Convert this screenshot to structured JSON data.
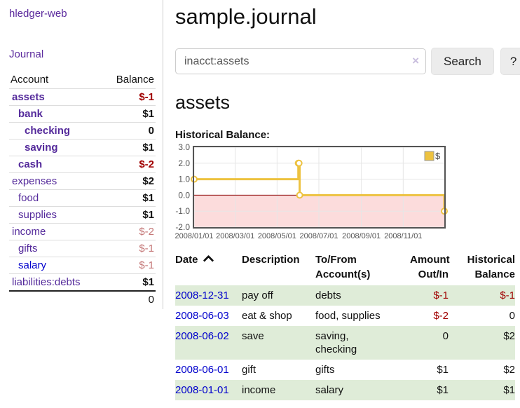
{
  "app": {
    "title": "hledger-web"
  },
  "sidebar": {
    "journal_link": "Journal",
    "accounts_table": {
      "headers": [
        "Account",
        "Balance"
      ],
      "rows": [
        {
          "name": "assets",
          "indent": 0,
          "bold": true,
          "balance": "$-1",
          "balance_class": "neg-strong"
        },
        {
          "name": "bank",
          "indent": 1,
          "bold": true,
          "balance": "$1",
          "balance_class": ""
        },
        {
          "name": "checking",
          "indent": 2,
          "bold": true,
          "balance": "0",
          "balance_class": ""
        },
        {
          "name": "saving",
          "indent": 2,
          "bold": true,
          "balance": "$1",
          "balance_class": ""
        },
        {
          "name": "cash",
          "indent": 1,
          "bold": true,
          "balance": "$-2",
          "balance_class": "neg-strong"
        },
        {
          "name": "expenses",
          "indent": 0,
          "bold": false,
          "balance": "$2",
          "balance_class": ""
        },
        {
          "name": "food",
          "indent": 1,
          "bold": false,
          "balance": "$1",
          "balance_class": ""
        },
        {
          "name": "supplies",
          "indent": 1,
          "bold": false,
          "balance": "$1",
          "balance_class": ""
        },
        {
          "name": "income",
          "indent": 0,
          "bold": false,
          "balance": "$-2",
          "balance_class": "neg-dim"
        },
        {
          "name": "gifts",
          "indent": 1,
          "bold": false,
          "balance": "$-1",
          "balance_class": "neg-dim"
        },
        {
          "name": "salary",
          "indent": 1,
          "bold": false,
          "blue": true,
          "balance": "$-1",
          "balance_class": "neg-dim"
        },
        {
          "name": "liabilities:debts",
          "indent": 0,
          "bold": false,
          "balance": "$1",
          "balance_class": ""
        }
      ],
      "total": "0"
    }
  },
  "main": {
    "title": "sample.journal",
    "search": {
      "value": "inacct:assets",
      "clear_icon": "×",
      "search_button": "Search",
      "help_button": "?"
    },
    "account_heading": "assets",
    "chart_label": "Historical Balance:"
  },
  "chart_data": {
    "type": "line",
    "title": "Historical Balance",
    "step": true,
    "xlim": [
      "2008-01-01",
      "2008-12-31"
    ],
    "ylim": [
      -2,
      3
    ],
    "x_ticks": [
      {
        "date": "2008-01-01",
        "label": "2008/01/01"
      },
      {
        "date": "2008-03-01",
        "label": "2008/03/01"
      },
      {
        "date": "2008-05-01",
        "label": "2008/05/01"
      },
      {
        "date": "2008-07-01",
        "label": "2008/07/01"
      },
      {
        "date": "2008-09-01",
        "label": "2008/09/01"
      },
      {
        "date": "2008-11-01",
        "label": "2008/11/01"
      }
    ],
    "y_ticks": [
      {
        "value": 3,
        "label": "3.0"
      },
      {
        "value": 2,
        "label": "2.0"
      },
      {
        "value": 1,
        "label": "1.0"
      },
      {
        "value": 0,
        "label": "0.0"
      },
      {
        "value": -1,
        "label": "-1.0"
      },
      {
        "value": -2,
        "label": "-2.0"
      }
    ],
    "series": [
      {
        "name": "$",
        "color": "#edc240",
        "points": [
          [
            "2008-01-01",
            1
          ],
          [
            "2008-06-01",
            2
          ],
          [
            "2008-06-02",
            2
          ],
          [
            "2008-06-03",
            0
          ],
          [
            "2008-12-31",
            -1
          ]
        ]
      }
    ],
    "grid_color": "#e6e6e6",
    "border_color": "#545454",
    "tick_color": "#545454",
    "zero_line_color": "#8b0000",
    "negative_region_color": "#fcdcdc",
    "legend": {
      "label": "$",
      "position": "top-right"
    }
  },
  "register": {
    "headers": [
      [
        "Date"
      ],
      [
        "Description"
      ],
      [
        "To/From",
        "Account(s)"
      ],
      [
        "Amount",
        "Out/In"
      ],
      [
        "Historical",
        "Balance"
      ]
    ],
    "sort_icon": "caret-up",
    "rows": [
      {
        "date": "2008-12-31",
        "description": "pay off",
        "accounts": "debts",
        "amount": "$-1",
        "amount_neg": true,
        "balance": "$-1",
        "balance_neg": true,
        "striped": true
      },
      {
        "date": "2008-06-03",
        "description": "eat & shop",
        "accounts": "food, supplies",
        "amount": "$-2",
        "amount_neg": true,
        "balance": "0",
        "balance_neg": false,
        "striped": false
      },
      {
        "date": "2008-06-02",
        "description": "save",
        "accounts": "saving, checking",
        "amount": "0",
        "amount_neg": false,
        "balance": "$2",
        "balance_neg": false,
        "striped": true
      },
      {
        "date": "2008-06-01",
        "description": "gift",
        "accounts": "gifts",
        "amount": "$1",
        "amount_neg": false,
        "balance": "$2",
        "balance_neg": false,
        "striped": false
      },
      {
        "date": "2008-01-01",
        "description": "income",
        "accounts": "salary",
        "amount": "$1",
        "amount_neg": false,
        "balance": "$1",
        "balance_neg": false,
        "striped": true
      }
    ]
  },
  "colors": {
    "link_purple": "#542a9b",
    "link_blue": "#0000cc",
    "negative_strong": "#a00000",
    "negative_dim": "#c47777",
    "stripe_green": "#dfecd8",
    "series_gold": "#edc240"
  }
}
